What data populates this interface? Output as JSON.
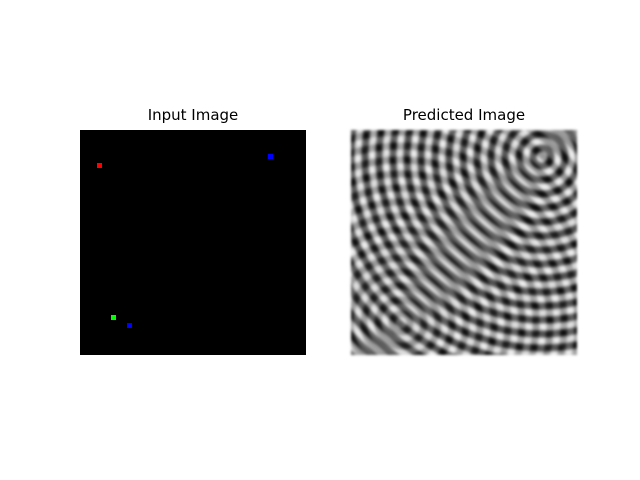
{
  "panels": [
    {
      "title": "Input Image"
    },
    {
      "title": "Predicted Image"
    }
  ]
}
